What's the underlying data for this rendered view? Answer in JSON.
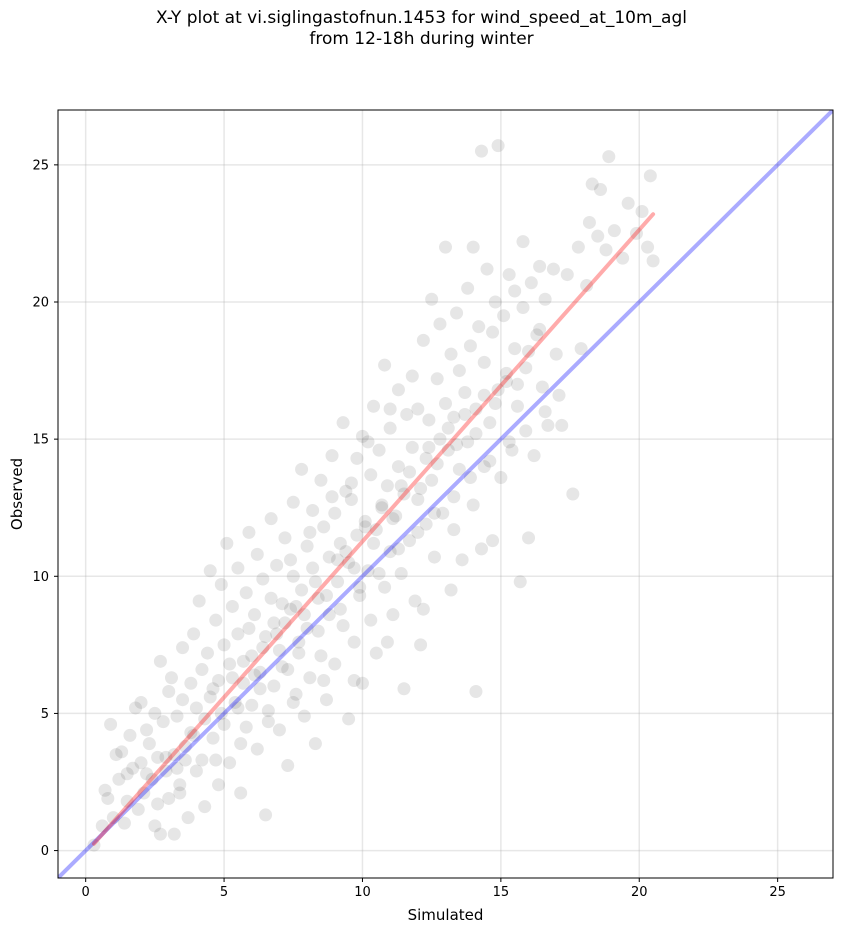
{
  "chart_data": {
    "type": "scatter",
    "title": "X-Y plot at vi.siglingastofnun.1453 for wind_speed_at_10m_agl",
    "subtitle": "from 12-18h during winter",
    "xlabel": "Simulated",
    "ylabel": "Observed",
    "xlim": [
      -1,
      27
    ],
    "ylim": [
      -1,
      27
    ],
    "xticks": [
      0,
      5,
      10,
      15,
      20,
      25
    ],
    "yticks": [
      0,
      5,
      10,
      15,
      20,
      25
    ],
    "grid": true,
    "point_color": "#333333",
    "points": [
      [
        0.3,
        0.2
      ],
      [
        0.6,
        0.9
      ],
      [
        0.7,
        2.2
      ],
      [
        0.8,
        1.9
      ],
      [
        0.9,
        4.6
      ],
      [
        1.1,
        3.5
      ],
      [
        1.2,
        2.6
      ],
      [
        1.3,
        3.6
      ],
      [
        1.4,
        1.0
      ],
      [
        1.5,
        2.8
      ],
      [
        1.6,
        4.2
      ],
      [
        1.7,
        3.0
      ],
      [
        1.8,
        5.2
      ],
      [
        1.9,
        1.5
      ],
      [
        2.0,
        3.2
      ],
      [
        2.0,
        5.4
      ],
      [
        2.1,
        2.1
      ],
      [
        2.2,
        4.4
      ],
      [
        2.3,
        3.9
      ],
      [
        2.4,
        2.6
      ],
      [
        2.5,
        0.9
      ],
      [
        2.5,
        5.0
      ],
      [
        2.6,
        3.4
      ],
      [
        2.7,
        0.6
      ],
      [
        2.7,
        6.9
      ],
      [
        2.8,
        4.7
      ],
      [
        2.9,
        2.9
      ],
      [
        3.0,
        5.8
      ],
      [
        3.0,
        1.9
      ],
      [
        3.1,
        6.3
      ],
      [
        3.2,
        3.5
      ],
      [
        3.2,
        0.6
      ],
      [
        3.3,
        4.9
      ],
      [
        3.4,
        2.4
      ],
      [
        3.5,
        5.5
      ],
      [
        3.5,
        7.4
      ],
      [
        3.6,
        3.8
      ],
      [
        3.7,
        1.2
      ],
      [
        3.8,
        6.1
      ],
      [
        3.8,
        4.3
      ],
      [
        3.9,
        7.9
      ],
      [
        4.0,
        2.9
      ],
      [
        4.0,
        5.2
      ],
      [
        4.1,
        9.1
      ],
      [
        4.2,
        6.6
      ],
      [
        4.2,
        3.3
      ],
      [
        4.3,
        1.6
      ],
      [
        4.4,
        7.2
      ],
      [
        4.5,
        5.6
      ],
      [
        4.5,
        10.2
      ],
      [
        4.6,
        4.1
      ],
      [
        4.7,
        8.4
      ],
      [
        4.8,
        6.2
      ],
      [
        4.8,
        2.4
      ],
      [
        4.9,
        9.7
      ],
      [
        5.0,
        7.5
      ],
      [
        5.0,
        4.6
      ],
      [
        5.1,
        11.2
      ],
      [
        5.2,
        6.8
      ],
      [
        5.2,
        3.2
      ],
      [
        5.3,
        8.9
      ],
      [
        5.4,
        5.4
      ],
      [
        5.5,
        10.3
      ],
      [
        5.5,
        7.9
      ],
      [
        5.6,
        2.1
      ],
      [
        5.7,
        6.1
      ],
      [
        5.8,
        9.4
      ],
      [
        5.8,
        4.5
      ],
      [
        5.9,
        11.6
      ],
      [
        6.0,
        7.1
      ],
      [
        6.0,
        5.3
      ],
      [
        6.1,
        8.6
      ],
      [
        6.2,
        10.8
      ],
      [
        6.2,
        3.7
      ],
      [
        6.3,
        6.5
      ],
      [
        6.4,
        9.9
      ],
      [
        6.5,
        1.3
      ],
      [
        6.5,
        7.8
      ],
      [
        6.6,
        5.1
      ],
      [
        6.7,
        12.1
      ],
      [
        6.8,
        8.3
      ],
      [
        6.8,
        6.0
      ],
      [
        6.9,
        10.4
      ],
      [
        7.0,
        4.4
      ],
      [
        7.0,
        7.3
      ],
      [
        7.1,
        9.0
      ],
      [
        7.2,
        11.4
      ],
      [
        7.3,
        6.6
      ],
      [
        7.3,
        3.1
      ],
      [
        7.4,
        8.8
      ],
      [
        7.5,
        12.7
      ],
      [
        7.5,
        10.0
      ],
      [
        7.6,
        5.7
      ],
      [
        7.7,
        7.6
      ],
      [
        7.8,
        13.9
      ],
      [
        7.8,
        9.5
      ],
      [
        7.9,
        4.9
      ],
      [
        8.0,
        11.1
      ],
      [
        8.0,
        8.1
      ],
      [
        8.1,
        6.3
      ],
      [
        8.2,
        12.4
      ],
      [
        8.2,
        10.3
      ],
      [
        8.3,
        3.9
      ],
      [
        8.4,
        9.2
      ],
      [
        8.5,
        13.5
      ],
      [
        8.5,
        7.1
      ],
      [
        8.6,
        11.8
      ],
      [
        8.7,
        5.5
      ],
      [
        8.8,
        10.7
      ],
      [
        8.8,
        8.6
      ],
      [
        8.9,
        14.4
      ],
      [
        9.0,
        12.3
      ],
      [
        9.0,
        6.8
      ],
      [
        9.1,
        9.8
      ],
      [
        9.2,
        11.2
      ],
      [
        9.3,
        15.6
      ],
      [
        9.3,
        8.2
      ],
      [
        9.4,
        13.1
      ],
      [
        9.5,
        10.5
      ],
      [
        9.5,
        4.8
      ],
      [
        9.6,
        12.8
      ],
      [
        9.7,
        7.6
      ],
      [
        9.8,
        14.3
      ],
      [
        9.8,
        11.5
      ],
      [
        9.9,
        9.3
      ],
      [
        10.0,
        15.1
      ],
      [
        10.0,
        6.1
      ],
      [
        10.1,
        12.0
      ],
      [
        10.2,
        10.2
      ],
      [
        10.3,
        13.7
      ],
      [
        10.3,
        8.4
      ],
      [
        10.4,
        16.2
      ],
      [
        10.5,
        11.7
      ],
      [
        10.5,
        7.2
      ],
      [
        10.6,
        14.6
      ],
      [
        10.7,
        12.5
      ],
      [
        10.8,
        9.6
      ],
      [
        10.8,
        17.7
      ],
      [
        10.9,
        13.3
      ],
      [
        11.0,
        10.9
      ],
      [
        11.0,
        15.4
      ],
      [
        11.1,
        8.6
      ],
      [
        11.2,
        12.2
      ],
      [
        11.3,
        16.8
      ],
      [
        11.3,
        14.0
      ],
      [
        11.4,
        10.1
      ],
      [
        11.5,
        5.9
      ],
      [
        11.5,
        13.0
      ],
      [
        11.6,
        15.9
      ],
      [
        11.7,
        11.3
      ],
      [
        11.8,
        17.3
      ],
      [
        11.8,
        14.7
      ],
      [
        11.9,
        9.1
      ],
      [
        12.0,
        12.8
      ],
      [
        12.0,
        16.1
      ],
      [
        12.1,
        7.5
      ],
      [
        12.2,
        18.6
      ],
      [
        12.3,
        14.3
      ],
      [
        12.3,
        11.9
      ],
      [
        12.4,
        15.7
      ],
      [
        12.5,
        20.1
      ],
      [
        12.5,
        13.5
      ],
      [
        12.6,
        10.7
      ],
      [
        12.7,
        17.2
      ],
      [
        12.8,
        15.0
      ],
      [
        12.8,
        19.2
      ],
      [
        12.9,
        12.3
      ],
      [
        13.0,
        16.3
      ],
      [
        13.0,
        22.0
      ],
      [
        13.1,
        14.6
      ],
      [
        13.2,
        18.1
      ],
      [
        13.3,
        11.7
      ],
      [
        13.3,
        15.8
      ],
      [
        13.4,
        19.6
      ],
      [
        13.5,
        13.9
      ],
      [
        13.5,
        17.5
      ],
      [
        13.6,
        10.6
      ],
      [
        13.7,
        16.7
      ],
      [
        13.8,
        20.5
      ],
      [
        13.8,
        14.9
      ],
      [
        13.9,
        18.4
      ],
      [
        14.0,
        12.6
      ],
      [
        14.0,
        22.0
      ],
      [
        14.1,
        16.1
      ],
      [
        14.1,
        5.8
      ],
      [
        14.2,
        19.1
      ],
      [
        14.3,
        25.5
      ],
      [
        14.4,
        17.8
      ],
      [
        14.4,
        14.0
      ],
      [
        14.5,
        21.2
      ],
      [
        14.6,
        15.6
      ],
      [
        14.7,
        18.9
      ],
      [
        14.7,
        11.3
      ],
      [
        14.8,
        20.0
      ],
      [
        14.9,
        25.7
      ],
      [
        14.9,
        16.8
      ],
      [
        15.0,
        13.6
      ],
      [
        15.1,
        19.5
      ],
      [
        15.2,
        17.1
      ],
      [
        15.3,
        21.0
      ],
      [
        15.4,
        14.6
      ],
      [
        15.5,
        18.3
      ],
      [
        15.5,
        20.4
      ],
      [
        15.6,
        16.2
      ],
      [
        15.7,
        9.8
      ],
      [
        15.8,
        19.8
      ],
      [
        15.8,
        22.2
      ],
      [
        15.9,
        17.6
      ],
      [
        16.0,
        11.4
      ],
      [
        16.1,
        20.7
      ],
      [
        16.2,
        14.4
      ],
      [
        16.3,
        18.8
      ],
      [
        16.4,
        21.3
      ],
      [
        16.5,
        16.9
      ],
      [
        16.6,
        20.1
      ],
      [
        16.7,
        15.5
      ],
      [
        16.9,
        21.2
      ],
      [
        17.0,
        18.1
      ],
      [
        17.2,
        15.5
      ],
      [
        17.4,
        21.0
      ],
      [
        17.6,
        13.0
      ],
      [
        17.8,
        22.0
      ],
      [
        17.9,
        18.3
      ],
      [
        18.1,
        20.6
      ],
      [
        18.2,
        22.9
      ],
      [
        18.3,
        24.3
      ],
      [
        18.5,
        22.4
      ],
      [
        18.6,
        24.1
      ],
      [
        18.8,
        21.9
      ],
      [
        18.9,
        25.3
      ],
      [
        19.1,
        22.6
      ],
      [
        19.4,
        21.6
      ],
      [
        19.6,
        23.6
      ],
      [
        19.9,
        22.5
      ],
      [
        20.1,
        23.3
      ],
      [
        20.3,
        22.0
      ],
      [
        20.4,
        24.6
      ],
      [
        20.5,
        21.5
      ],
      [
        1.0,
        1.2
      ],
      [
        1.5,
        1.8
      ],
      [
        2.2,
        2.8
      ],
      [
        2.9,
        3.4
      ],
      [
        3.3,
        3.0
      ],
      [
        3.9,
        4.2
      ],
      [
        4.3,
        4.8
      ],
      [
        4.6,
        5.9
      ],
      [
        5.3,
        6.3
      ],
      [
        5.7,
        6.9
      ],
      [
        6.1,
        6.4
      ],
      [
        6.4,
        7.4
      ],
      [
        6.9,
        7.9
      ],
      [
        7.2,
        8.3
      ],
      [
        7.6,
        8.9
      ],
      [
        7.9,
        8.6
      ],
      [
        8.3,
        9.8
      ],
      [
        8.7,
        9.3
      ],
      [
        9.1,
        10.6
      ],
      [
        9.4,
        10.9
      ],
      [
        9.7,
        10.3
      ],
      [
        10.1,
        11.8
      ],
      [
        10.4,
        11.2
      ],
      [
        10.7,
        12.6
      ],
      [
        11.1,
        12.1
      ],
      [
        11.4,
        13.3
      ],
      [
        11.7,
        13.8
      ],
      [
        12.1,
        13.2
      ],
      [
        12.4,
        14.7
      ],
      [
        12.7,
        14.1
      ],
      [
        13.1,
        15.4
      ],
      [
        13.4,
        14.8
      ],
      [
        13.7,
        15.9
      ],
      [
        14.1,
        15.2
      ],
      [
        14.4,
        16.6
      ],
      [
        14.8,
        16.3
      ],
      [
        15.2,
        17.4
      ],
      [
        15.6,
        17.0
      ],
      [
        16.0,
        18.2
      ],
      [
        16.4,
        19.0
      ],
      [
        5.9,
        8.1
      ],
      [
        6.7,
        9.2
      ],
      [
        7.4,
        10.6
      ],
      [
        8.1,
        11.6
      ],
      [
        8.9,
        12.9
      ],
      [
        9.6,
        13.4
      ],
      [
        10.2,
        14.9
      ],
      [
        11.0,
        16.1
      ],
      [
        3.6,
        3.3
      ],
      [
        4.9,
        5.0
      ],
      [
        5.5,
        5.2
      ],
      [
        6.3,
        5.9
      ],
      [
        7.1,
        6.7
      ],
      [
        7.7,
        7.2
      ],
      [
        8.4,
        8.0
      ],
      [
        9.2,
        8.8
      ],
      [
        9.9,
        9.6
      ],
      [
        10.6,
        10.1
      ],
      [
        11.3,
        11.0
      ],
      [
        12.0,
        11.6
      ],
      [
        12.6,
        12.3
      ],
      [
        13.3,
        12.9
      ],
      [
        13.9,
        13.6
      ],
      [
        14.6,
        14.2
      ],
      [
        15.3,
        14.9
      ],
      [
        15.9,
        15.3
      ],
      [
        16.6,
        16.0
      ],
      [
        17.1,
        16.6
      ],
      [
        2.6,
        1.7
      ],
      [
        3.4,
        2.1
      ],
      [
        4.7,
        3.3
      ],
      [
        5.6,
        3.9
      ],
      [
        6.6,
        4.7
      ],
      [
        7.5,
        5.4
      ],
      [
        8.6,
        6.2
      ],
      [
        9.7,
        6.2
      ],
      [
        10.9,
        7.6
      ],
      [
        12.2,
        8.8
      ],
      [
        13.2,
        9.5
      ],
      [
        14.3,
        11.0
      ]
    ],
    "one_to_one_line": {
      "x": [
        -1,
        27
      ],
      "y": [
        -1,
        27
      ],
      "color": "#0000ff"
    },
    "fit_line": {
      "x": [
        0.3,
        20.5
      ],
      "y": [
        0.25,
        23.2
      ],
      "color": "#ff0000"
    }
  }
}
